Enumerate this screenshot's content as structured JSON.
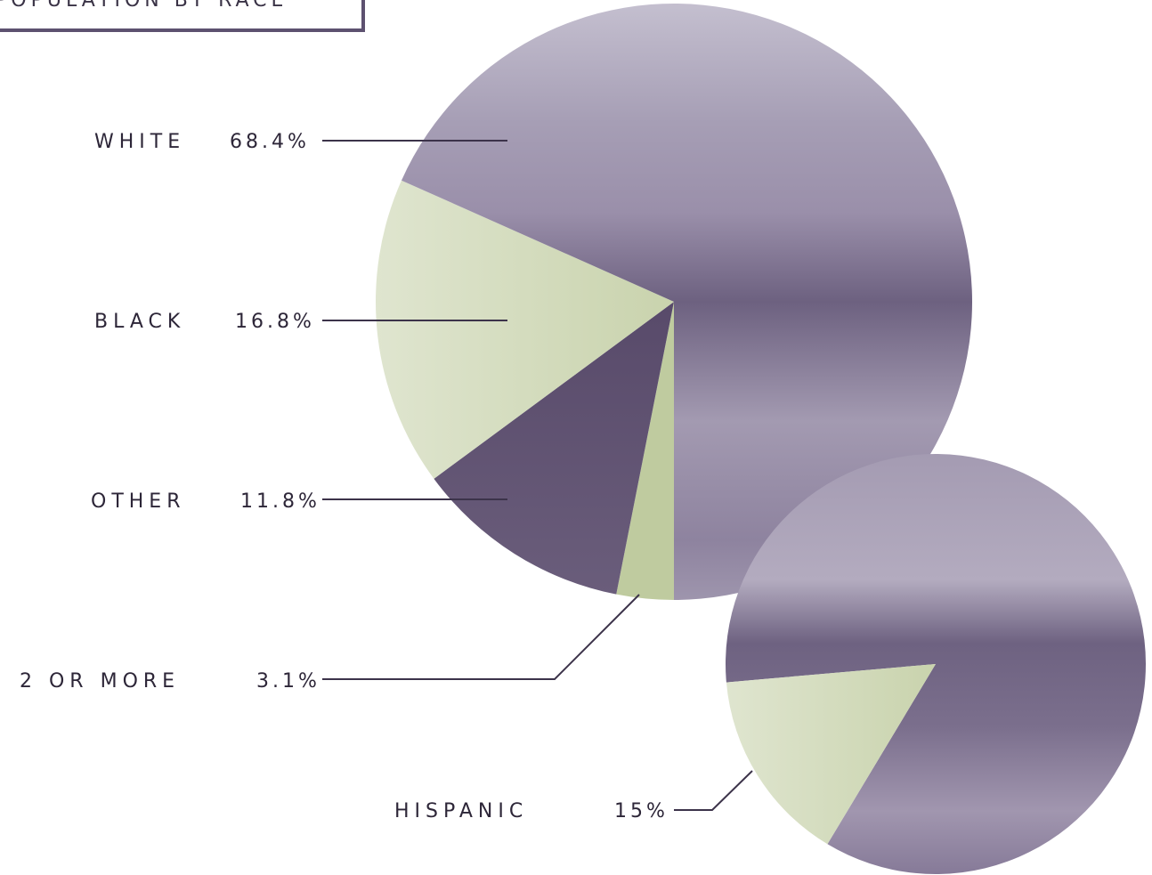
{
  "title": "POPULATION BY RACE",
  "colors": {
    "purple_light": "#b4aec0",
    "purple_mid": "#8c809c",
    "purple_dark": "#5e5070",
    "green_light": "#d5dcc2",
    "green_mid": "#bfcb9f",
    "leader": "#3c334a"
  },
  "chart_data": [
    {
      "type": "pie",
      "categories": [
        "WHITE",
        "BLACK",
        "OTHER",
        "2 OR MORE"
      ],
      "values": [
        68.4,
        16.8,
        11.8,
        3.1
      ],
      "labels": [
        "68.4%",
        "16.8%",
        "11.8%",
        "3.1%"
      ]
    },
    {
      "type": "pie",
      "categories": [
        "HISPANIC"
      ],
      "values": [
        15
      ],
      "labels": [
        "15%"
      ]
    }
  ]
}
